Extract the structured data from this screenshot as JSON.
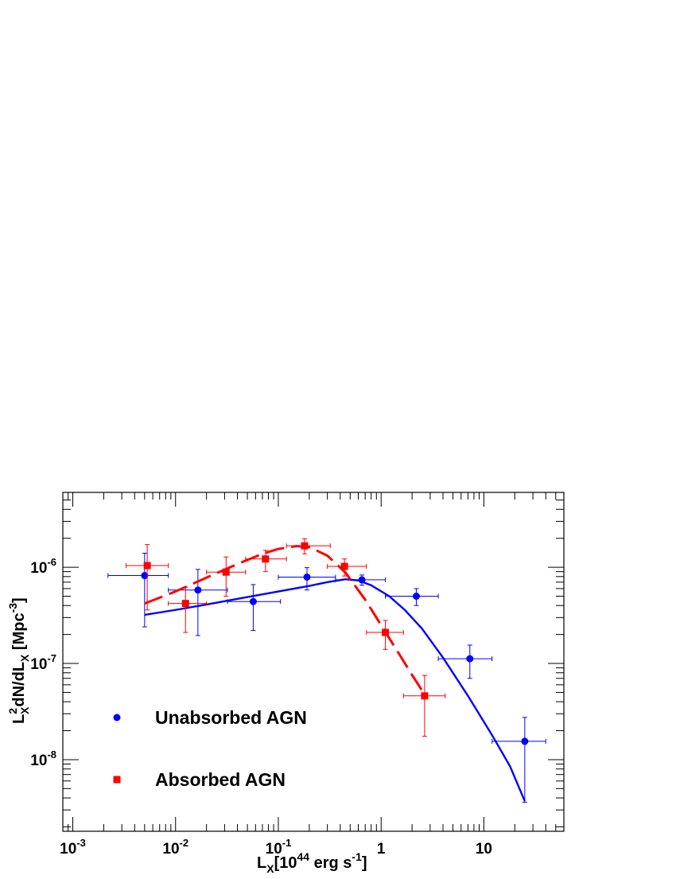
{
  "chart_data": {
    "type": "scatter",
    "xscale": "log",
    "yscale": "log",
    "xlim": [
      0.0008,
      60
    ],
    "ylim": [
      1.8e-09,
      6e-06
    ],
    "xlabel": {
      "main": "L",
      "sub": "X",
      "bracket_open": "[10",
      "exp": "44",
      "rest": " erg s",
      "rest_exp": "-1",
      "bracket_close": "]"
    },
    "ylabel": {
      "L": "L",
      "sup2": "2",
      "subX": "X",
      "mid": "dN/dL",
      "subX2": "X",
      "open": " [Mpc",
      "exp": "-3",
      "close": "]"
    },
    "x_ticks": [
      {
        "value": 0.001,
        "base": "10",
        "exp": "-3"
      },
      {
        "value": 0.01,
        "base": "10",
        "exp": "-2"
      },
      {
        "value": 0.1,
        "base": "10",
        "exp": "-1"
      },
      {
        "value": 1,
        "base": "1",
        "exp": ""
      },
      {
        "value": 10,
        "base": "10",
        "exp": ""
      }
    ],
    "y_ticks": [
      {
        "value": 1e-08,
        "base": "10",
        "exp": "-8"
      },
      {
        "value": 1e-07,
        "base": "10",
        "exp": "-7"
      },
      {
        "value": 1e-06,
        "base": "10",
        "exp": "-6"
      }
    ],
    "grid": false,
    "legend_position": "lower-left",
    "series": [
      {
        "name": "Unabsorbed AGN",
        "marker": "circle",
        "color": "#0000ff",
        "points": [
          {
            "x": 0.005,
            "y": 8.2e-07,
            "xlo": 0.0022,
            "xhi": 0.0085,
            "ylo": 2.4e-07,
            "yhi": 1.4e-06
          },
          {
            "x": 0.0165,
            "y": 5.8e-07,
            "xlo": 0.0085,
            "xhi": 0.032,
            "ylo": 1.95e-07,
            "yhi": 9.5e-07
          },
          {
            "x": 0.057,
            "y": 4.4e-07,
            "xlo": 0.032,
            "xhi": 0.105,
            "ylo": 2.2e-07,
            "yhi": 6.6e-07
          },
          {
            "x": 0.19,
            "y": 7.9e-07,
            "xlo": 0.1,
            "xhi": 0.36,
            "ylo": 5.8e-07,
            "yhi": 9.9e-07
          },
          {
            "x": 0.65,
            "y": 7.4e-07,
            "xlo": 0.36,
            "xhi": 1.1,
            "ylo": 6.5e-07,
            "yhi": 8.3e-07
          },
          {
            "x": 2.2,
            "y": 5e-07,
            "xlo": 1.1,
            "xhi": 3.6,
            "ylo": 4e-07,
            "yhi": 6e-07
          },
          {
            "x": 7.3,
            "y": 1.12e-07,
            "xlo": 3.6,
            "xhi": 12,
            "ylo": 7e-08,
            "yhi": 1.55e-07
          },
          {
            "x": 25,
            "y": 1.55e-08,
            "xlo": 12,
            "xhi": 40,
            "ylo": 3.6e-09,
            "yhi": 2.75e-08
          }
        ],
        "fit": {
          "style": "solid",
          "x": [
            0.005,
            0.01,
            0.02,
            0.05,
            0.1,
            0.2,
            0.3,
            0.45,
            0.6,
            0.8,
            1.2,
            1.7,
            2.5,
            4,
            7,
            12,
            18,
            25
          ],
          "y": [
            3.2e-07,
            3.6e-07,
            4.1e-07,
            4.9e-07,
            5.6e-07,
            6.4e-07,
            7e-07,
            7.5e-07,
            7.3e-07,
            6.5e-07,
            5e-07,
            3.6e-07,
            2.3e-07,
            1.15e-07,
            4.6e-08,
            1.8e-08,
            8.5e-09,
            3.7e-09
          ]
        }
      },
      {
        "name": "Absorbed AGN",
        "marker": "square",
        "color": "#ff0000",
        "points": [
          {
            "x": 0.0053,
            "y": 1.04e-06,
            "xlo": 0.0033,
            "xhi": 0.0085,
            "ylo": 3.6e-07,
            "yhi": 1.72e-06
          },
          {
            "x": 0.0125,
            "y": 4.2e-07,
            "xlo": 0.0085,
            "xhi": 0.02,
            "ylo": 2.1e-07,
            "yhi": 6.2e-07
          },
          {
            "x": 0.031,
            "y": 8.9e-07,
            "xlo": 0.02,
            "xhi": 0.048,
            "ylo": 5e-07,
            "yhi": 1.28e-06
          },
          {
            "x": 0.075,
            "y": 1.22e-06,
            "xlo": 0.048,
            "xhi": 0.12,
            "ylo": 9e-07,
            "yhi": 1.5e-06
          },
          {
            "x": 0.18,
            "y": 1.67e-06,
            "xlo": 0.12,
            "xhi": 0.32,
            "ylo": 1.38e-06,
            "yhi": 1.98e-06
          },
          {
            "x": 0.44,
            "y": 1.02e-06,
            "xlo": 0.3,
            "xhi": 0.72,
            "ylo": 8.1e-07,
            "yhi": 1.22e-06
          },
          {
            "x": 1.1,
            "y": 2.1e-07,
            "xlo": 0.72,
            "xhi": 1.65,
            "ylo": 1.4e-07,
            "yhi": 2.8e-07
          },
          {
            "x": 2.65,
            "y": 4.6e-08,
            "xlo": 1.65,
            "xhi": 4.2,
            "ylo": 1.75e-08,
            "yhi": 7.5e-08
          }
        ],
        "fit": {
          "style": "dashed",
          "x": [
            0.005,
            0.01,
            0.02,
            0.04,
            0.07,
            0.1,
            0.15,
            0.2,
            0.3,
            0.45,
            0.7,
            1.0,
            1.5,
            2.0,
            2.7
          ],
          "y": [
            4.2e-07,
            5.6e-07,
            7.8e-07,
            1.08e-06,
            1.38e-06,
            1.55e-06,
            1.66e-06,
            1.62e-06,
            1.32e-06,
            8.8e-07,
            4.6e-07,
            2.5e-07,
            1.25e-07,
            7.6e-08,
            4.6e-08
          ]
        }
      }
    ]
  }
}
